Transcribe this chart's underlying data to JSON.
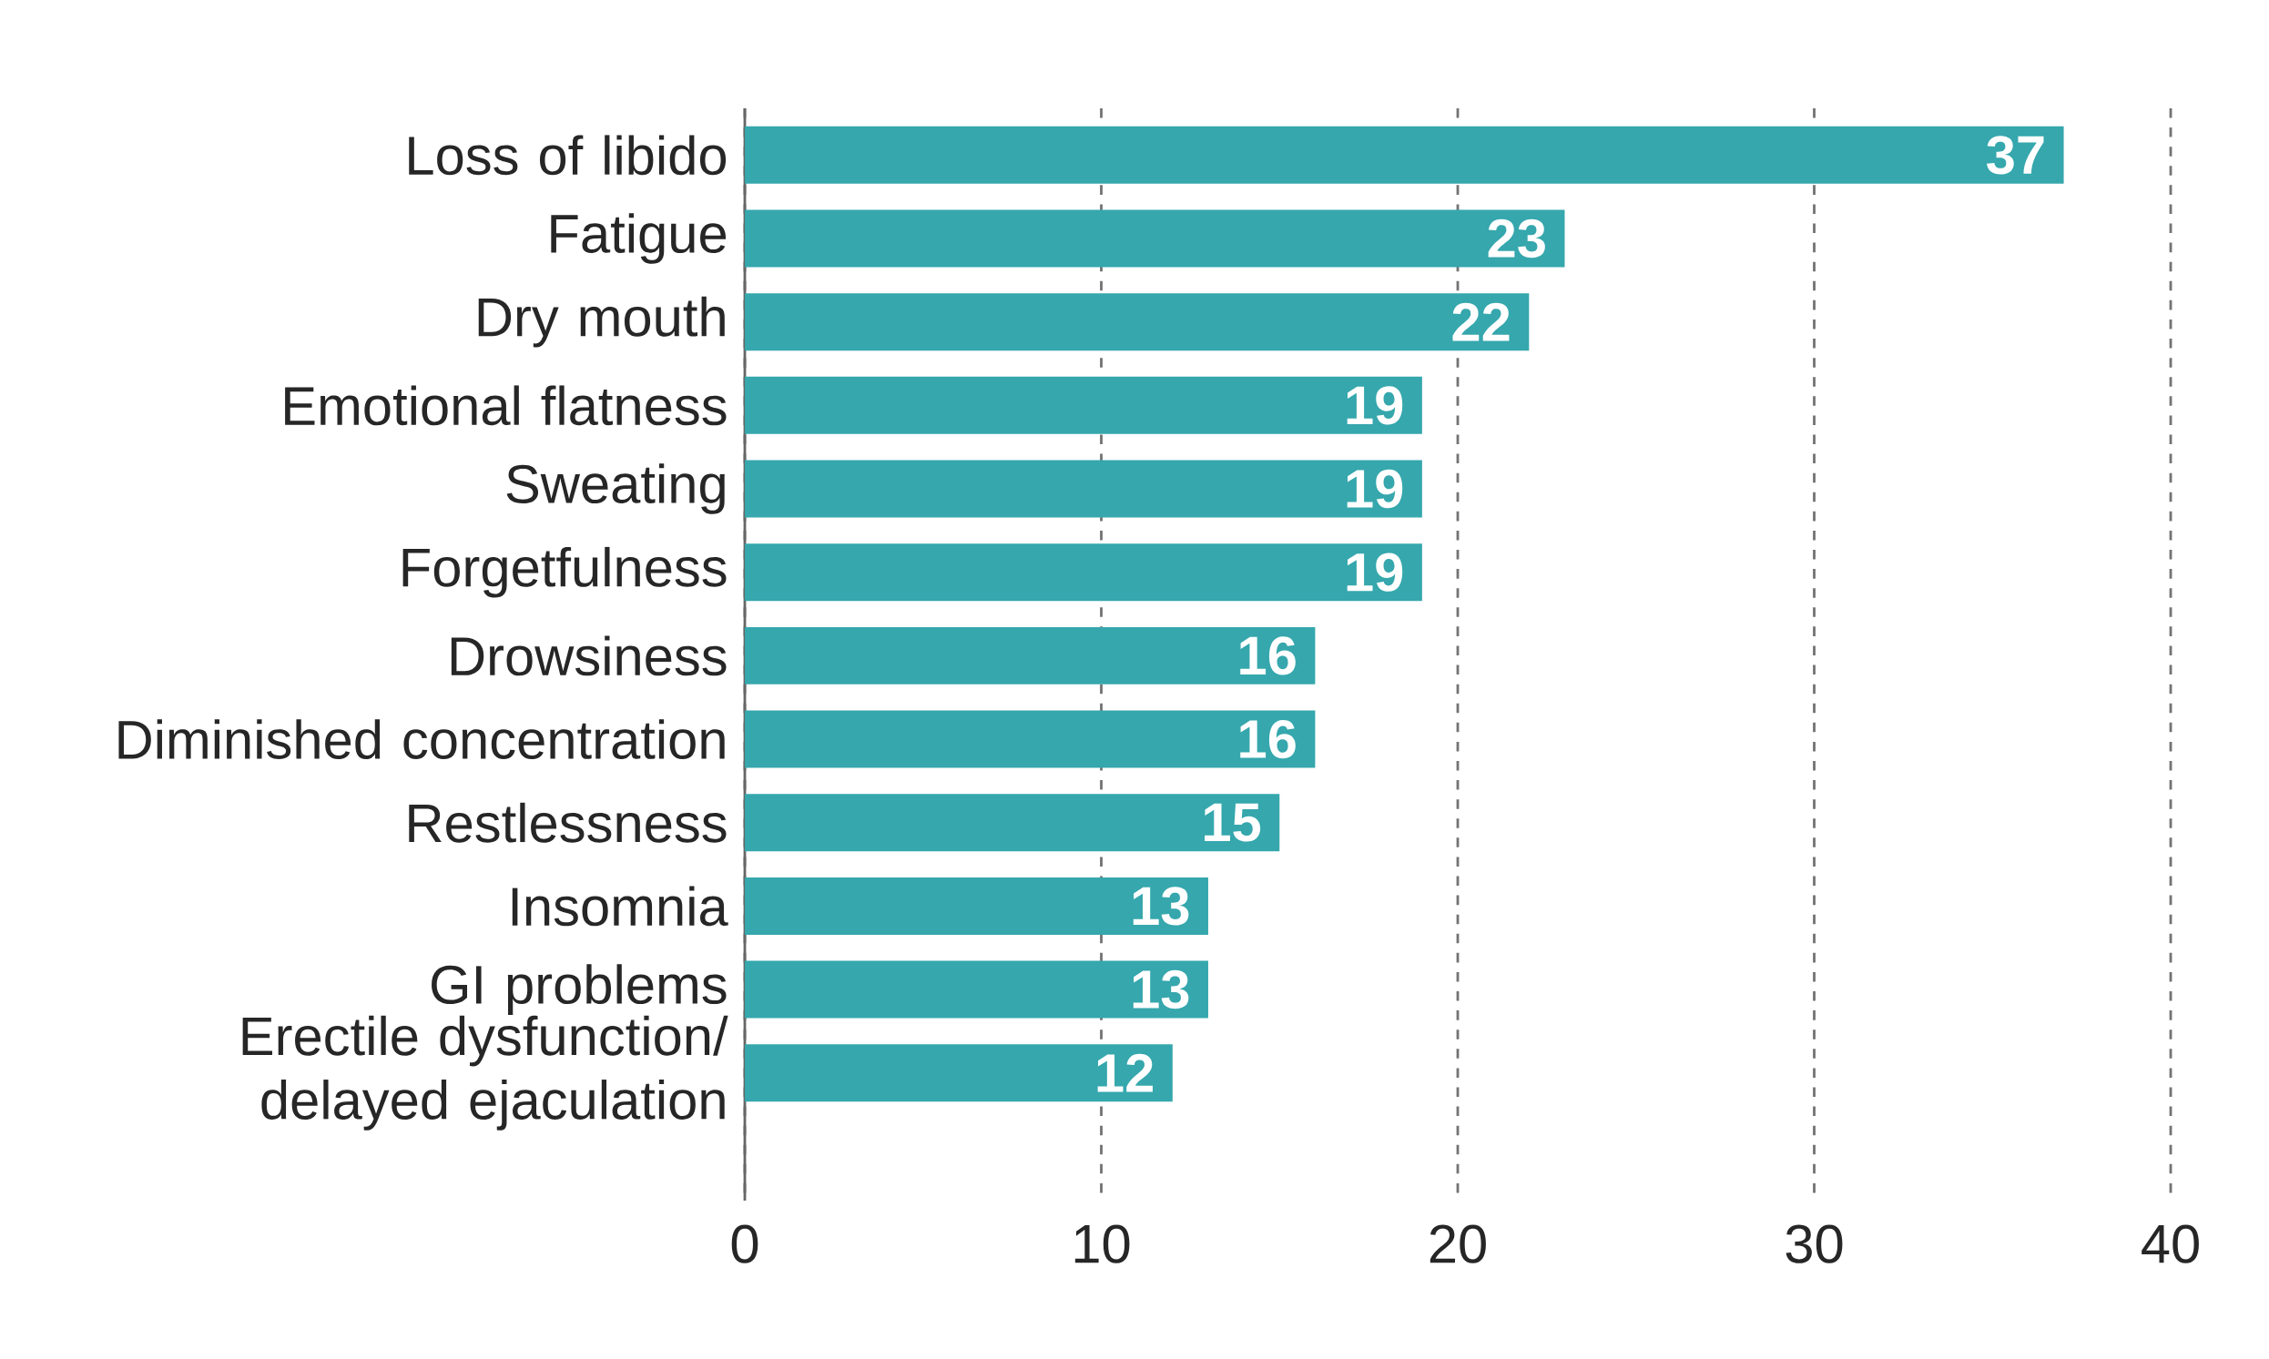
{
  "chart_data": {
    "type": "bar",
    "orientation": "horizontal",
    "categories": [
      "Loss of libido",
      "Fatigue",
      "Dry mouth",
      "Emotional flatness",
      "Sweating",
      "Forgetfulness",
      "Drowsiness",
      "Diminished concentration",
      "Restlessness",
      "Insomnia",
      "GI problems",
      "Erectile dysfunction/ delayed ejaculation"
    ],
    "values": [
      37,
      23,
      22,
      19,
      19,
      19,
      16,
      16,
      15,
      13,
      13,
      12
    ],
    "color": "#35a7ad",
    "xlim": [
      0,
      40
    ],
    "xticks": [
      0,
      10,
      20,
      30,
      40
    ],
    "grid": "x",
    "data_labels": true
  }
}
